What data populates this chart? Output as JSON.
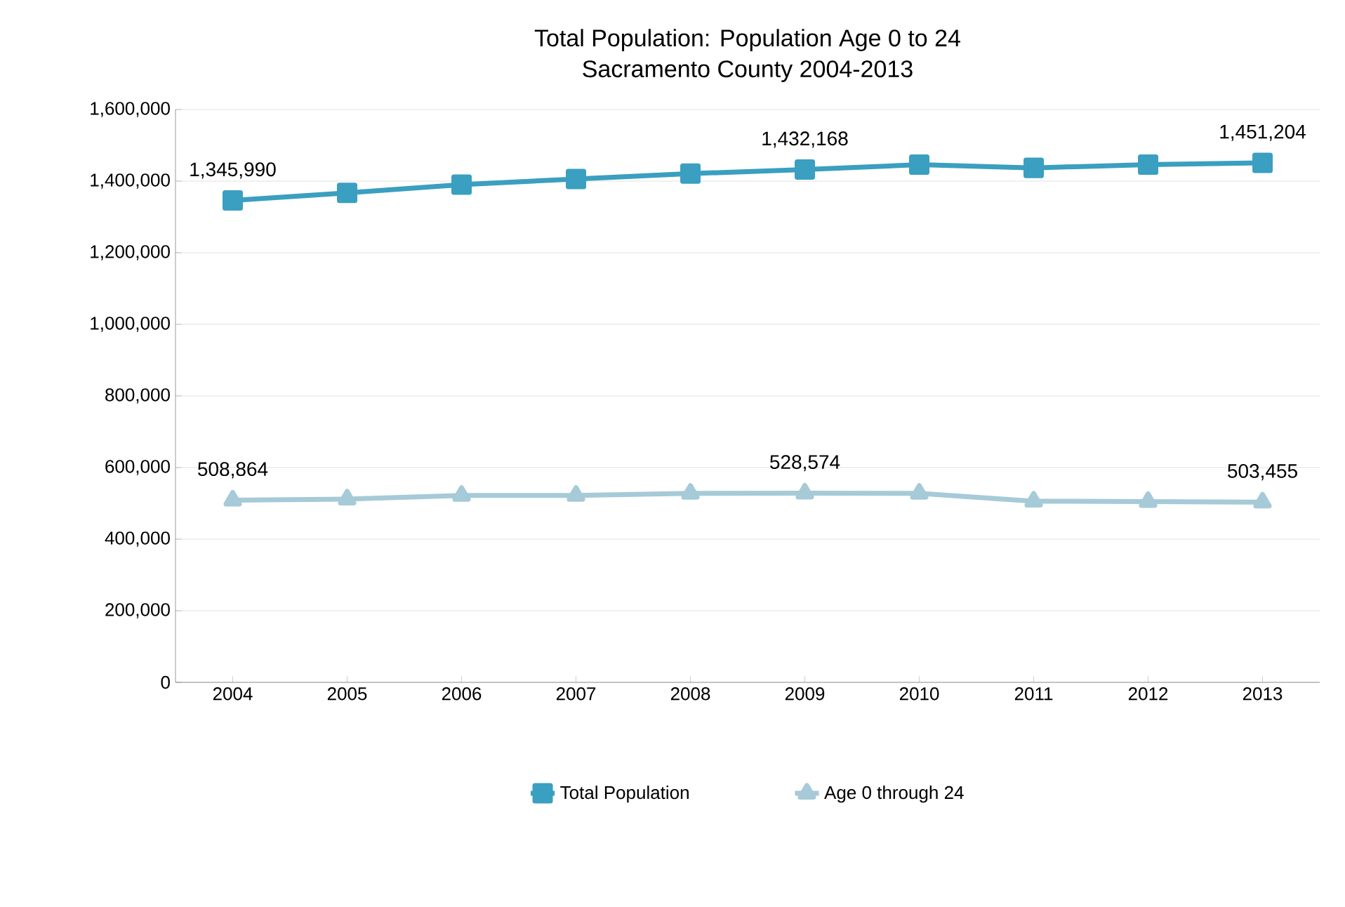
{
  "chart_data": {
    "type": "line",
    "title": "Total Population: Population Age 0 to 24",
    "subtitle": "Sacramento County 2004-2013",
    "categories": [
      "2004",
      "2005",
      "2006",
      "2007",
      "2008",
      "2009",
      "2010",
      "2011",
      "2012",
      "2013"
    ],
    "series": [
      {
        "name": "Total Population",
        "color": "#3a9fc0",
        "marker": "square",
        "values": [
          1345990,
          1367000,
          1390000,
          1406000,
          1421000,
          1432168,
          1446000,
          1437000,
          1446000,
          1451204
        ],
        "value_labels": [
          "1,345,990",
          null,
          null,
          null,
          null,
          "1,432,168",
          null,
          null,
          null,
          "1,451,204"
        ]
      },
      {
        "name": "Age 0 through 24",
        "color": "#a6cad7",
        "marker": "triangle",
        "values": [
          508864,
          512000,
          522000,
          522000,
          528000,
          528574,
          528000,
          506000,
          505000,
          503455
        ],
        "value_labels": [
          "508,864",
          null,
          null,
          null,
          null,
          "528,574",
          null,
          null,
          null,
          "503,455"
        ]
      }
    ],
    "ylim": [
      0,
      1600000
    ],
    "yticks": [
      {
        "value": 0,
        "label": "0"
      },
      {
        "value": 200000,
        "label": "200,000"
      },
      {
        "value": 400000,
        "label": "400,000"
      },
      {
        "value": 600000,
        "label": "600,000"
      },
      {
        "value": 800000,
        "label": "800,000"
      },
      {
        "value": 1000000,
        "label": "1,000,000"
      },
      {
        "value": 1200000,
        "label": "1,200,000"
      },
      {
        "value": 1400000,
        "label": "1,400,000"
      },
      {
        "value": 1600000,
        "label": "1,600,000"
      }
    ],
    "grid": "y",
    "legend": "bottom",
    "line_style": "solid"
  }
}
